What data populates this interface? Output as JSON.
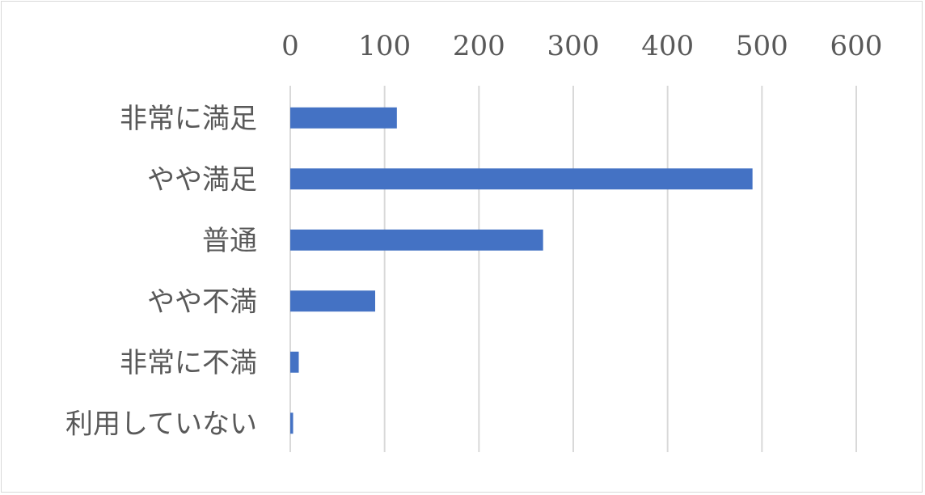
{
  "chart_data": {
    "type": "bar",
    "orientation": "horizontal",
    "categories": [
      "非常に満足",
      "やや満足",
      "普通",
      "やや不満",
      "非常に不満",
      "利用していない"
    ],
    "values": [
      113,
      490,
      268,
      90,
      9,
      3
    ],
    "xlim": [
      0,
      600
    ],
    "xticks": [
      "0",
      "100",
      "200",
      "300",
      "400",
      "500",
      "600"
    ],
    "x_axis_position": "top",
    "grid": true,
    "legend": "none",
    "title": "",
    "xlabel": "",
    "ylabel": "",
    "colors": {
      "bar": "#4472c4",
      "grid": "#d9d9d9",
      "text": "#595959",
      "border": "#d9d9d9"
    }
  }
}
